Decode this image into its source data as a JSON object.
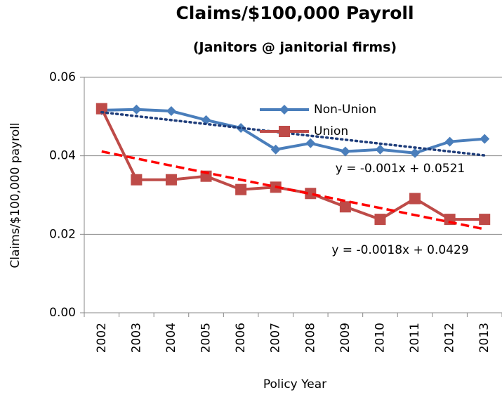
{
  "chart_data": {
    "type": "line",
    "title": "Claims/$100,000 Payroll",
    "subtitle": "(Janitors @ janitorial firms)",
    "x_label": "Policy Year",
    "y_label": "Claims/$100,000 payroll",
    "categories": [
      "2002",
      "2003",
      "2004",
      "2005",
      "2006",
      "2007",
      "2008",
      "2009",
      "2010",
      "2011",
      "2012",
      "2013"
    ],
    "series": [
      {
        "name": "Non-Union",
        "color": "#4a7ebb",
        "marker": "diamond",
        "values": [
          0.0516,
          0.0518,
          0.0514,
          0.0491,
          0.0471,
          0.0416,
          0.0432,
          0.0411,
          0.0416,
          0.0407,
          0.0436,
          0.0443
        ]
      },
      {
        "name": "Union",
        "color": "#be4b48",
        "marker": "square",
        "values": [
          0.052,
          0.0339,
          0.0339,
          0.0348,
          0.0314,
          0.032,
          0.0304,
          0.027,
          0.0238,
          0.0291,
          0.0238,
          0.0238
        ]
      }
    ],
    "trendlines": [
      {
        "label": "y = -0.001x + 0.0521",
        "slope": -0.001,
        "intercept": 0.0521,
        "color": "#1f3d7a",
        "style": "dotted"
      },
      {
        "label": "y = -0.0018x + 0.0429",
        "slope": -0.0018,
        "intercept": 0.0429,
        "color": "#ff0000",
        "style": "dashed"
      }
    ],
    "ylim": [
      0,
      0.06
    ],
    "yticks": [
      {
        "value": 0,
        "label": "0.00"
      },
      0.02,
      0.04,
      0.06
    ],
    "grid": true,
    "legend": "top-center"
  }
}
